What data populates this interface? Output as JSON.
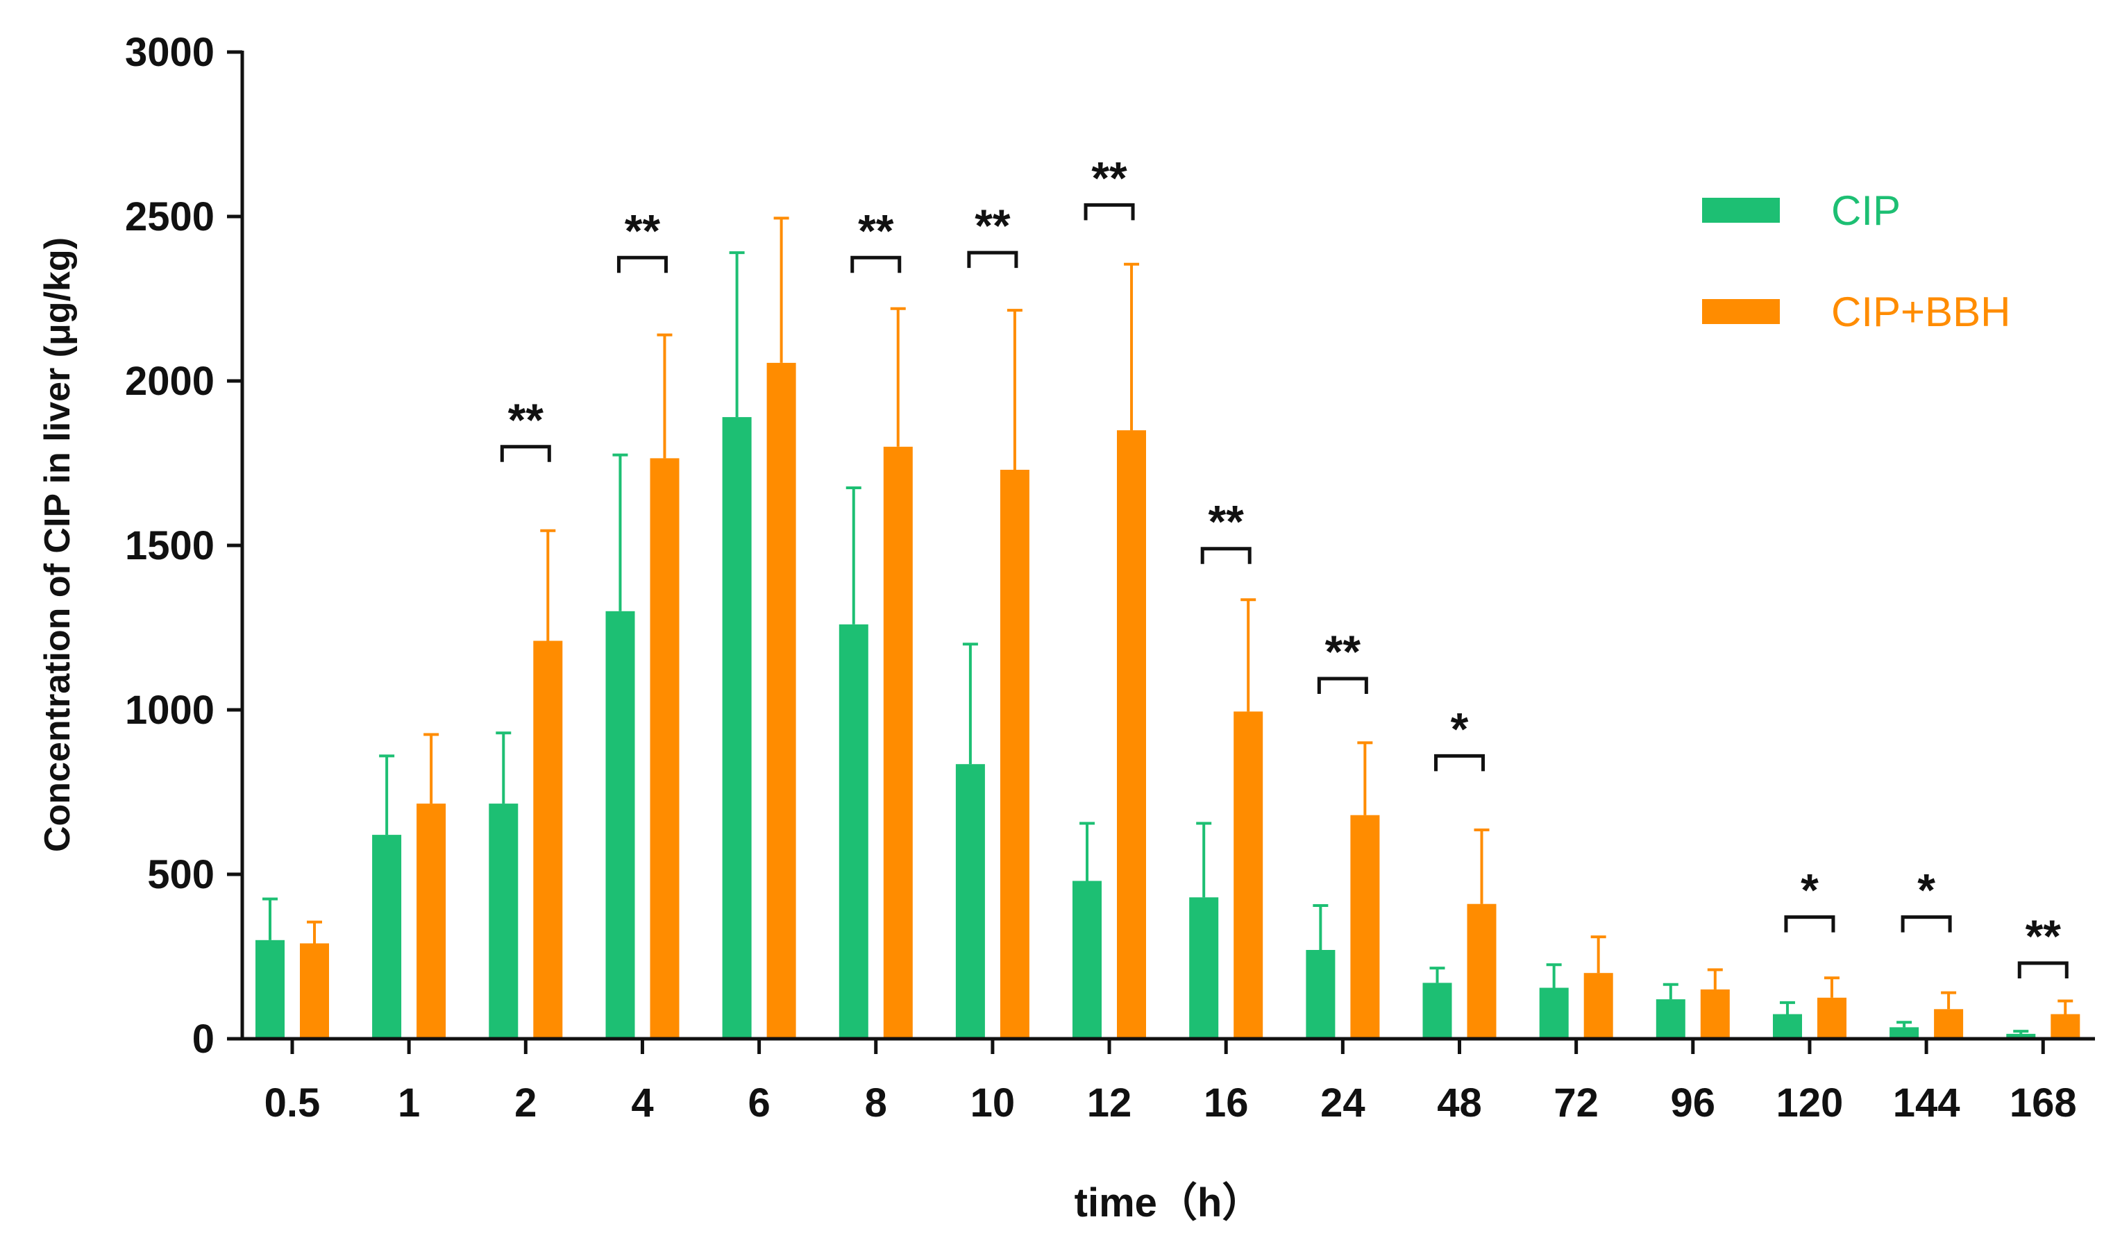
{
  "chart_data": {
    "type": "bar",
    "title": "",
    "xlabel": "time（h）",
    "ylabel": "Concentration of CIP in liver (μg/kg)",
    "ylim": [
      0,
      3000
    ],
    "yticks": [
      0,
      500,
      1000,
      1500,
      2000,
      2500,
      3000
    ],
    "grid": false,
    "legend_position": "top-right",
    "categories": [
      "0.5",
      "1",
      "2",
      "4",
      "6",
      "8",
      "10",
      "12",
      "16",
      "24",
      "48",
      "72",
      "96",
      "120",
      "144",
      "168"
    ],
    "series": [
      {
        "name": "CIP",
        "color": "#1dbf73",
        "values": [
          300,
          620,
          715,
          1300,
          1890,
          1260,
          835,
          480,
          430,
          270,
          170,
          155,
          120,
          75,
          35,
          15
        ],
        "errors": [
          125,
          240,
          215,
          475,
          500,
          415,
          365,
          175,
          225,
          135,
          45,
          70,
          45,
          35,
          15,
          8
        ]
      },
      {
        "name": "CIP+BBH",
        "color": "#ff8c00",
        "values": [
          290,
          715,
          1210,
          1765,
          2055,
          1800,
          1730,
          1850,
          995,
          680,
          410,
          200,
          150,
          125,
          90,
          75
        ],
        "errors": [
          65,
          210,
          335,
          375,
          440,
          420,
          485,
          505,
          340,
          220,
          225,
          110,
          60,
          60,
          50,
          40
        ]
      }
    ],
    "annotations": [
      {
        "category": "2",
        "label": "**",
        "level": 1800
      },
      {
        "category": "4",
        "label": "**",
        "level": 2375
      },
      {
        "category": "8",
        "label": "**",
        "level": 2375
      },
      {
        "category": "10",
        "label": "**",
        "level": 2390
      },
      {
        "category": "12",
        "label": "**",
        "level": 2535
      },
      {
        "category": "16",
        "label": "**",
        "level": 1490
      },
      {
        "category": "24",
        "label": "**",
        "level": 1095
      },
      {
        "category": "48",
        "label": "*",
        "level": 860
      },
      {
        "category": "120",
        "label": "*",
        "level": 370
      },
      {
        "category": "144",
        "label": "*",
        "level": 370
      },
      {
        "category": "168",
        "label": "**",
        "level": 230
      }
    ]
  }
}
